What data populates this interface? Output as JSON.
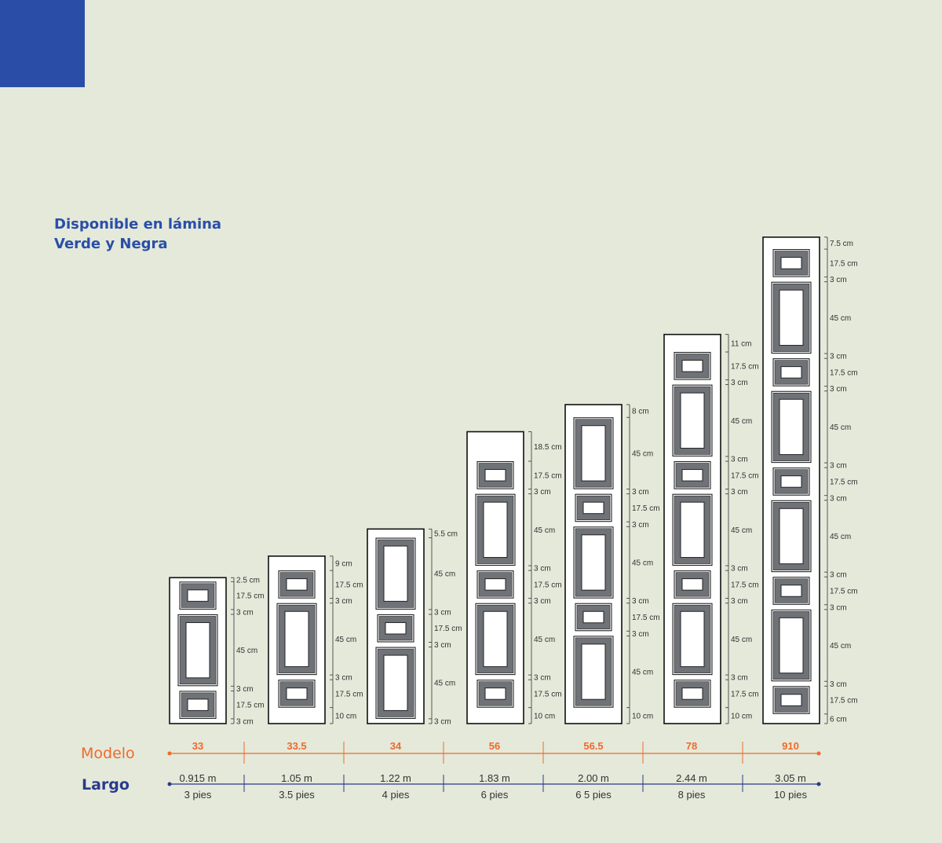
{
  "tagline": {
    "line1": "Disponible en lámina",
    "line2": "Verde y Negra"
  },
  "row_labels": {
    "modelo": "Modelo",
    "largo": "Largo"
  },
  "colors": {
    "modelo": "#ef6a2c",
    "largo": "#2a3a8c",
    "brand_blue": "#2a4ea8",
    "background": "#e4e9da"
  },
  "models": [
    {
      "modelo": "33",
      "largo_m": "0.915 m",
      "largo_pies": "3 pies",
      "segments": [
        {
          "type": "gap",
          "label": "2.5 cm",
          "cm": 2.5
        },
        {
          "type": "small",
          "label": "17.5 cm",
          "cm": 17.5
        },
        {
          "type": "gap",
          "label": "3 cm",
          "cm": 3
        },
        {
          "type": "large",
          "label": "45 cm",
          "cm": 45
        },
        {
          "type": "gap",
          "label": "3 cm",
          "cm": 3
        },
        {
          "type": "small",
          "label": "17.5 cm",
          "cm": 17.5
        },
        {
          "type": "gap",
          "label": "3 cm",
          "cm": 3
        }
      ]
    },
    {
      "modelo": "33.5",
      "largo_m": "1.05 m",
      "largo_pies": "3.5 pies",
      "segments": [
        {
          "type": "gap",
          "label": "9 cm",
          "cm": 9
        },
        {
          "type": "small",
          "label": "17.5 cm",
          "cm": 17.5
        },
        {
          "type": "gap",
          "label": "3 cm",
          "cm": 3
        },
        {
          "type": "large",
          "label": "45 cm",
          "cm": 45
        },
        {
          "type": "gap",
          "label": "3 cm",
          "cm": 3
        },
        {
          "type": "small",
          "label": "17.5 cm",
          "cm": 17.5
        },
        {
          "type": "gap",
          "label": "10 cm",
          "cm": 10
        }
      ]
    },
    {
      "modelo": "34",
      "largo_m": "1.22 m",
      "largo_pies": "4 pies",
      "segments": [
        {
          "type": "gap",
          "label": "5.5 cm",
          "cm": 5.5
        },
        {
          "type": "large",
          "label": "45 cm",
          "cm": 45
        },
        {
          "type": "gap",
          "label": "3 cm",
          "cm": 3
        },
        {
          "type": "small",
          "label": "17.5 cm",
          "cm": 17.5
        },
        {
          "type": "gap",
          "label": "3 cm",
          "cm": 3
        },
        {
          "type": "large",
          "label": "45 cm",
          "cm": 45
        },
        {
          "type": "gap",
          "label": "3 cm",
          "cm": 3
        }
      ]
    },
    {
      "modelo": "56",
      "largo_m": "1.83 m",
      "largo_pies": "6 pies",
      "segments": [
        {
          "type": "gap",
          "label": "18.5 cm",
          "cm": 18.5
        },
        {
          "type": "small",
          "label": "17.5 cm",
          "cm": 17.5
        },
        {
          "type": "gap",
          "label": "3 cm",
          "cm": 3
        },
        {
          "type": "large",
          "label": "45 cm",
          "cm": 45
        },
        {
          "type": "gap",
          "label": "3 cm",
          "cm": 3
        },
        {
          "type": "small",
          "label": "17.5 cm",
          "cm": 17.5
        },
        {
          "type": "gap",
          "label": "3 cm",
          "cm": 3
        },
        {
          "type": "large",
          "label": "45 cm",
          "cm": 45
        },
        {
          "type": "gap",
          "label": "3 cm",
          "cm": 3
        },
        {
          "type": "small",
          "label": "17.5 cm",
          "cm": 17.5
        },
        {
          "type": "gap",
          "label": "10 cm",
          "cm": 10
        }
      ]
    },
    {
      "modelo": "56.5",
      "largo_m": "2.00 m",
      "largo_pies": "6 5 pies",
      "segments": [
        {
          "type": "gap",
          "label": "8 cm",
          "cm": 8
        },
        {
          "type": "large",
          "label": "45 cm",
          "cm": 45
        },
        {
          "type": "gap",
          "label": "3 cm",
          "cm": 3
        },
        {
          "type": "small",
          "label": "17.5 cm",
          "cm": 17.5
        },
        {
          "type": "gap",
          "label": "3 cm",
          "cm": 3
        },
        {
          "type": "large",
          "label": "45 cm",
          "cm": 45
        },
        {
          "type": "gap",
          "label": "3 cm",
          "cm": 3
        },
        {
          "type": "small",
          "label": "17.5 cm",
          "cm": 17.5
        },
        {
          "type": "gap",
          "label": "3 cm",
          "cm": 3
        },
        {
          "type": "large",
          "label": "45 cm",
          "cm": 45
        },
        {
          "type": "gap",
          "label": "10 cm",
          "cm": 10
        }
      ]
    },
    {
      "modelo": "78",
      "largo_m": "2.44 m",
      "largo_pies": "8 pies",
      "segments": [
        {
          "type": "gap",
          "label": "11 cm",
          "cm": 11
        },
        {
          "type": "small",
          "label": "17.5 cm",
          "cm": 17.5
        },
        {
          "type": "gap",
          "label": "3 cm",
          "cm": 3
        },
        {
          "type": "large",
          "label": "45 cm",
          "cm": 45
        },
        {
          "type": "gap",
          "label": "3 cm",
          "cm": 3
        },
        {
          "type": "small",
          "label": "17.5 cm",
          "cm": 17.5
        },
        {
          "type": "gap",
          "label": "3 cm",
          "cm": 3
        },
        {
          "type": "large",
          "label": "45  cm",
          "cm": 45
        },
        {
          "type": "gap",
          "label": "3 cm",
          "cm": 3
        },
        {
          "type": "small",
          "label": "17.5 cm",
          "cm": 17.5
        },
        {
          "type": "gap",
          "label": "3 cm",
          "cm": 3
        },
        {
          "type": "large",
          "label": "45 cm",
          "cm": 45
        },
        {
          "type": "gap",
          "label": "3 cm",
          "cm": 3
        },
        {
          "type": "small",
          "label": "17.5 cm",
          "cm": 17.5
        },
        {
          "type": "gap",
          "label": "10 cm",
          "cm": 10
        }
      ]
    },
    {
      "modelo": "910",
      "largo_m": "3.05 m",
      "largo_pies": "10 pies",
      "segments": [
        {
          "type": "gap",
          "label": "7.5 cm",
          "cm": 7.5
        },
        {
          "type": "small",
          "label": "17.5 cm",
          "cm": 17.5
        },
        {
          "type": "gap",
          "label": "3 cm",
          "cm": 3
        },
        {
          "type": "large",
          "label": "45  cm",
          "cm": 45
        },
        {
          "type": "gap",
          "label": "3 cm",
          "cm": 3
        },
        {
          "type": "small",
          "label": "17.5 cm",
          "cm": 17.5
        },
        {
          "type": "gap",
          "label": "3 cm",
          "cm": 3
        },
        {
          "type": "large",
          "label": "45 cm",
          "cm": 45
        },
        {
          "type": "gap",
          "label": "3 cm",
          "cm": 3
        },
        {
          "type": "small",
          "label": "17.5 cm",
          "cm": 17.5
        },
        {
          "type": "gap",
          "label": "3 cm",
          "cm": 3
        },
        {
          "type": "large",
          "label": "45 cm",
          "cm": 45
        },
        {
          "type": "gap",
          "label": "3 cm",
          "cm": 3
        },
        {
          "type": "small",
          "label": "17.5 cm",
          "cm": 17.5
        },
        {
          "type": "gap",
          "label": "3 cm",
          "cm": 3
        },
        {
          "type": "large",
          "label": "45 cm",
          "cm": 45
        },
        {
          "type": "gap",
          "label": "3 cm",
          "cm": 3
        },
        {
          "type": "small",
          "label": "17.5 cm",
          "cm": 17.5
        },
        {
          "type": "gap",
          "label": "6 cm",
          "cm": 6
        }
      ]
    }
  ]
}
